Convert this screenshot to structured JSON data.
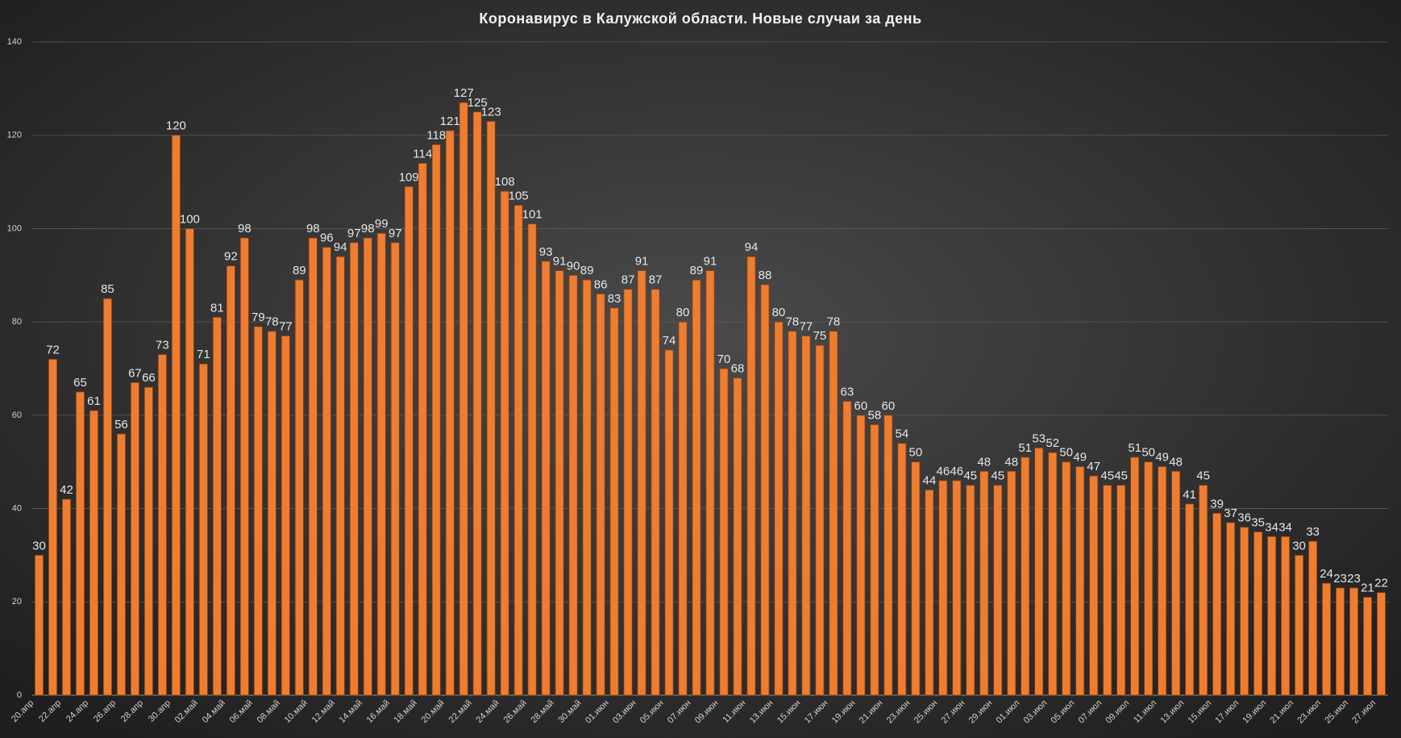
{
  "chart_data": {
    "type": "bar",
    "title": "Коронавирус  в Калужской  области. Новые  случаи за день",
    "categories": [
      "20.апр",
      null,
      "22.апр",
      null,
      "24.апр",
      null,
      "26.апр",
      null,
      "28.апр",
      null,
      "30.апр",
      null,
      "02.май",
      null,
      "04.май",
      null,
      "06.май",
      null,
      "08.май",
      null,
      "10.май",
      null,
      "12.май",
      null,
      "14.май",
      null,
      "16.май",
      null,
      "18.май",
      null,
      "20.май",
      null,
      "22.май",
      null,
      "24.май",
      null,
      "26.май",
      null,
      "28.май",
      null,
      "30.май",
      null,
      "01.июн",
      null,
      "03.июн",
      null,
      "05.июн",
      null,
      "07.июн",
      null,
      "09.июн",
      null,
      "11.июн",
      null,
      "13.июн",
      null,
      "15.июн",
      null,
      "17.июн",
      null,
      "19.июн",
      null,
      "21.июн",
      null,
      "23.июн",
      null,
      "25.июн",
      null,
      "27.июн",
      null,
      "29.июн",
      null,
      "01.июл",
      null,
      "03.июл",
      null,
      "05.июл",
      null,
      "07.июл",
      null,
      "09.июл",
      null,
      "11.июл",
      null,
      "13.июл",
      null,
      "15.июл",
      null,
      "17.июл",
      null,
      "19.июл",
      null,
      "21.июл",
      null,
      "23.июл",
      null,
      "25.июл",
      null,
      "27.июл"
    ],
    "values": [
      30,
      72,
      42,
      65,
      61,
      85,
      56,
      67,
      66,
      73,
      120,
      100,
      71,
      81,
      92,
      98,
      79,
      78,
      77,
      89,
      98,
      96,
      94,
      97,
      98,
      99,
      97,
      109,
      114,
      118,
      121,
      127,
      125,
      123,
      108,
      105,
      101,
      93,
      91,
      90,
      89,
      86,
      83,
      87,
      91,
      87,
      74,
      80,
      89,
      91,
      70,
      68,
      94,
      88,
      80,
      78,
      77,
      75,
      78,
      63,
      60,
      58,
      60,
      54,
      50,
      44,
      46,
      46,
      45,
      48,
      45,
      48,
      51,
      53,
      52,
      50,
      49,
      47,
      45,
      45,
      51,
      50,
      49,
      48,
      41,
      45,
      39,
      37,
      36,
      35,
      34,
      34,
      30,
      33,
      24,
      23,
      23,
      21,
      22
    ],
    "color": "#ed7d31",
    "ylim": [
      0,
      140
    ],
    "yticks": [
      0,
      20,
      40,
      60,
      80,
      100,
      120,
      140
    ],
    "grid": true
  }
}
